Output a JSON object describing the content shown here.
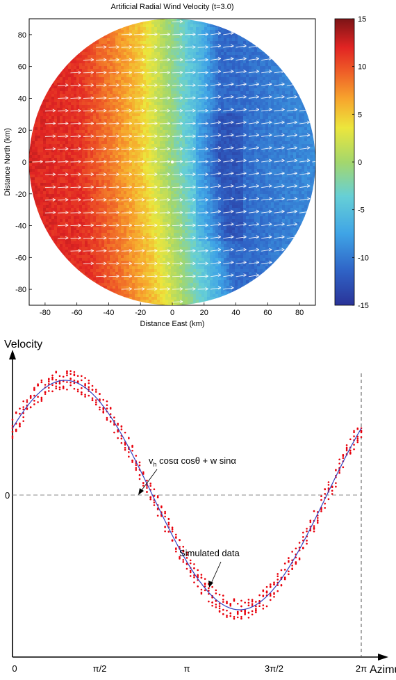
{
  "chart_data": [
    {
      "type": "heatmap",
      "title": "Artificial Radial Wind Velocity (t=3.0)",
      "xlabel": "Distance East (km)",
      "ylabel": "Distance North (km)",
      "xlim": [
        -90,
        90
      ],
      "ylim": [
        -90,
        90
      ],
      "x_ticks": [
        -80,
        -60,
        -40,
        -20,
        0,
        20,
        40,
        60,
        80
      ],
      "y_ticks": [
        80,
        60,
        40,
        20,
        0,
        -20,
        -40,
        -60,
        -80
      ],
      "radar_range_km": 90,
      "colorbar": {
        "min": -15,
        "max": 15,
        "ticks": [
          15,
          10,
          5,
          0,
          -5,
          -10,
          -15
        ],
        "colormap": "jet"
      },
      "field": {
        "description_values_at_x_km": {
          "x": [
            -90,
            -60,
            -40,
            -20,
            -10,
            0,
            10,
            20,
            30,
            40,
            60,
            90
          ],
          "velocity": [
            12,
            11.5,
            8.5,
            5,
            2,
            -1,
            -4,
            -7,
            -11,
            -11,
            -10,
            -9
          ]
        }
      },
      "wind_vectors": {
        "direction": "east",
        "color": "#ffffff",
        "grid_spacing_km": 8
      },
      "radar_marker": {
        "x": 0,
        "y": 0,
        "color": "#ffffff"
      }
    },
    {
      "type": "scatter",
      "xlabel": "Azimuth",
      "ylabel": "Velocity",
      "x_ticks": [
        "0",
        "π/2",
        "π",
        "3π/2",
        "2π"
      ],
      "x_tick_values": [
        0,
        1.5708,
        3.1416,
        4.7124,
        6.2832
      ],
      "y_ticks": [
        "0"
      ],
      "model_curve": {
        "formula": "v_h cosα cosθ + w sinα",
        "amplitude": 1.0,
        "phase_max_azimuth": 0.95,
        "color": "#3340c0"
      },
      "series": [
        {
          "name": "Simulated data",
          "color": "#e8000b",
          "n_azimuths": 96,
          "points_per_azimuth": 6,
          "noise": 0.09
        }
      ],
      "annotations": [
        {
          "text_parts": [
            "v",
            "h",
            " cosα cosθ + w sinα"
          ]
        },
        {
          "text": "Simulated data"
        }
      ],
      "zero_line": {
        "style": "dashed",
        "color": "#888888"
      },
      "end_marker": {
        "x": 6.2832,
        "style": "dashed"
      }
    }
  ],
  "colors": {
    "accent": "#e8000b",
    "curve": "#3340c0",
    "axis": "#000000"
  }
}
